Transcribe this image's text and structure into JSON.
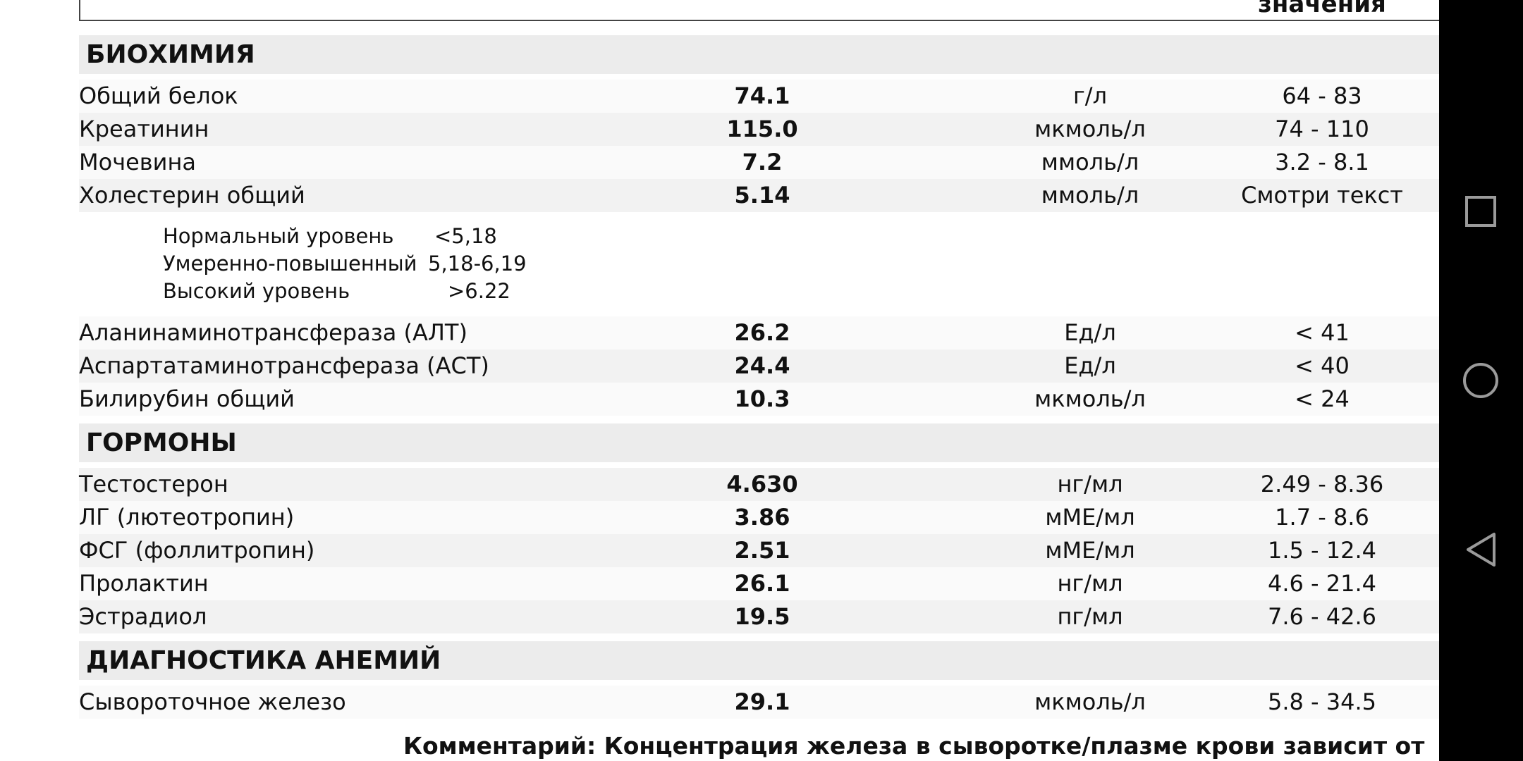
{
  "header": {
    "reference_label": "значения"
  },
  "sections": [
    {
      "title": "БИОХИМИЯ",
      "items": [
        {
          "name": "Общий белок",
          "value": "74.1",
          "unit": "г/л",
          "reference": "64 - 83"
        },
        {
          "name": "Креатинин",
          "value": "115.0",
          "unit": "мкмоль/л",
          "reference": "74 - 110"
        },
        {
          "name": "Мочевина",
          "value": "7.2",
          "unit": "ммоль/л",
          "reference": "3.2 - 8.1"
        },
        {
          "name": "Холестерин общий",
          "value": "5.14",
          "unit": "ммоль/л",
          "reference": "Смотри текст"
        },
        {
          "note": [
            {
              "label": "Нормальный уровень",
              "value": "<5,18"
            },
            {
              "label": "Умеренно-повышенный",
              "value": "5,18-6,19"
            },
            {
              "label": "Высокий уровень",
              "value": ">6.22"
            }
          ]
        },
        {
          "name": "Аланинаминотрансфераза (АЛТ)",
          "value": "26.2",
          "unit": "Ед/л",
          "reference": "< 41"
        },
        {
          "name": "Аспартатаминотрансфераза (АСТ)",
          "value": "24.4",
          "unit": "Ед/л",
          "reference": "< 40"
        },
        {
          "name": "Билирубин общий",
          "value": "10.3",
          "unit": "мкмоль/л",
          "reference": "< 24"
        }
      ]
    },
    {
      "title": "ГОРМОНЫ",
      "items": [
        {
          "name": "Тестостерон",
          "value": "4.630",
          "unit": "нг/мл",
          "reference": "2.49 - 8.36"
        },
        {
          "name": "ЛГ (лютеотропин)",
          "value": "3.86",
          "unit": "мМЕ/мл",
          "reference": "1.7 - 8.6"
        },
        {
          "name": "ФСГ (фоллитропин)",
          "value": "2.51",
          "unit": "мМЕ/мл",
          "reference": "1.5 - 12.4"
        },
        {
          "name": "Пролактин",
          "value": "26.1",
          "unit": "нг/мл",
          "reference": "4.6 - 21.4"
        },
        {
          "name": "Эстрадиол",
          "value": "19.5",
          "unit": "пг/мл",
          "reference": "7.6 - 42.6"
        }
      ]
    },
    {
      "title": "ДИАГНОСТИКА АНЕМИЙ",
      "items": [
        {
          "name": "Сывороточное железо",
          "value": "29.1",
          "unit": "мкмоль/л",
          "reference": "5.8 - 34.5"
        }
      ]
    }
  ],
  "comment": "Комментарий: Концентрация железа в сыворотке/плазме крови зависит от"
}
